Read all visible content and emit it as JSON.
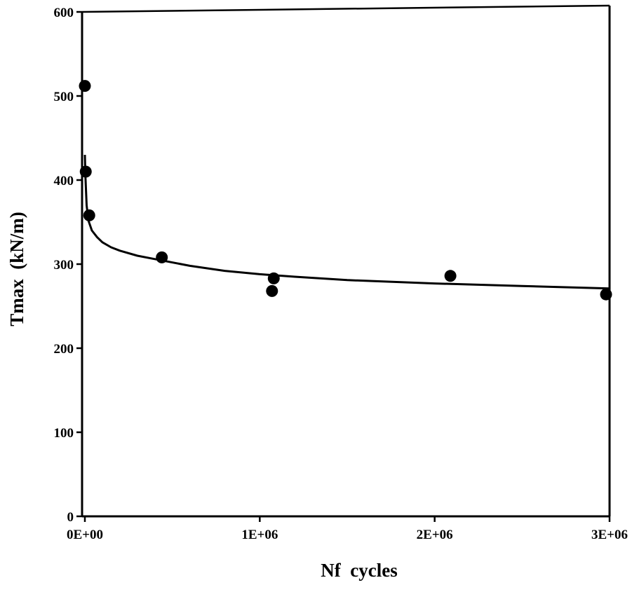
{
  "chart_data": {
    "type": "scatter",
    "title": "",
    "xlabel": "Nf  cycles",
    "ylabel": "Tmax  (kN/m)",
    "xlim": [
      0,
      3000000
    ],
    "ylim": [
      0,
      600
    ],
    "x_ticks": [
      0,
      1000000,
      2000000,
      3000000
    ],
    "x_tick_labels": [
      "0E+00",
      "1E+06",
      "2E+06",
      "3E+06"
    ],
    "y_ticks": [
      0,
      100,
      200,
      300,
      400,
      500,
      600
    ],
    "y_tick_labels": [
      "0",
      "100",
      "200",
      "300",
      "400",
      "500",
      "600"
    ],
    "grid": false,
    "legend": "none",
    "series": [
      {
        "type": "scatter",
        "x": [
          0,
          5000,
          25000,
          440000,
          1070000,
          1080000,
          2090000,
          2980000
        ],
        "y": [
          512,
          410,
          358,
          308,
          268,
          283,
          286,
          264
        ]
      },
      {
        "type": "line",
        "x": [
          0,
          3000,
          10000,
          20000,
          40000,
          70000,
          100000,
          150000,
          200000,
          300000,
          400000,
          600000,
          800000,
          1000000,
          1200000,
          1500000,
          2000000,
          2500000,
          3000000
        ],
        "y": [
          430,
          405,
          370,
          352,
          340,
          332,
          326,
          320,
          316,
          310,
          306,
          298,
          292,
          288,
          285,
          281,
          277,
          274,
          271
        ]
      }
    ],
    "colors": {
      "marker": "#000000",
      "line": "#000000",
      "axes": "#000000"
    }
  }
}
